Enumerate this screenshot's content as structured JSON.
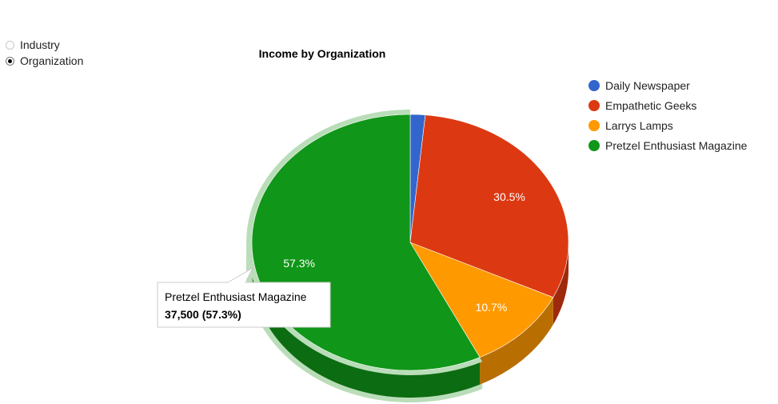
{
  "filter": {
    "options": [
      {
        "label": "Industry",
        "selected": false
      },
      {
        "label": "Organization",
        "selected": true
      }
    ]
  },
  "chart_data": {
    "type": "pie",
    "title": "Income by Organization",
    "is3D": true,
    "legend_position": "right",
    "slices": [
      {
        "label": "Daily Newspaper",
        "value": 1000,
        "color": "#3366cc",
        "percent_label": ""
      },
      {
        "label": "Empathetic Geeks",
        "value": 20000,
        "color": "#dc3912",
        "percent_label": "30.5%"
      },
      {
        "label": "Larrys Lamps",
        "value": 7000,
        "color": "#ff9900",
        "percent_label": "10.7%"
      },
      {
        "label": "Pretzel Enthusiast Magazine",
        "value": 37500,
        "color": "#109618",
        "percent_label": "57.3%"
      }
    ],
    "tooltip": {
      "label": "Pretzel Enthusiast Magazine",
      "value_text": "37,500 (57.3%)"
    }
  }
}
